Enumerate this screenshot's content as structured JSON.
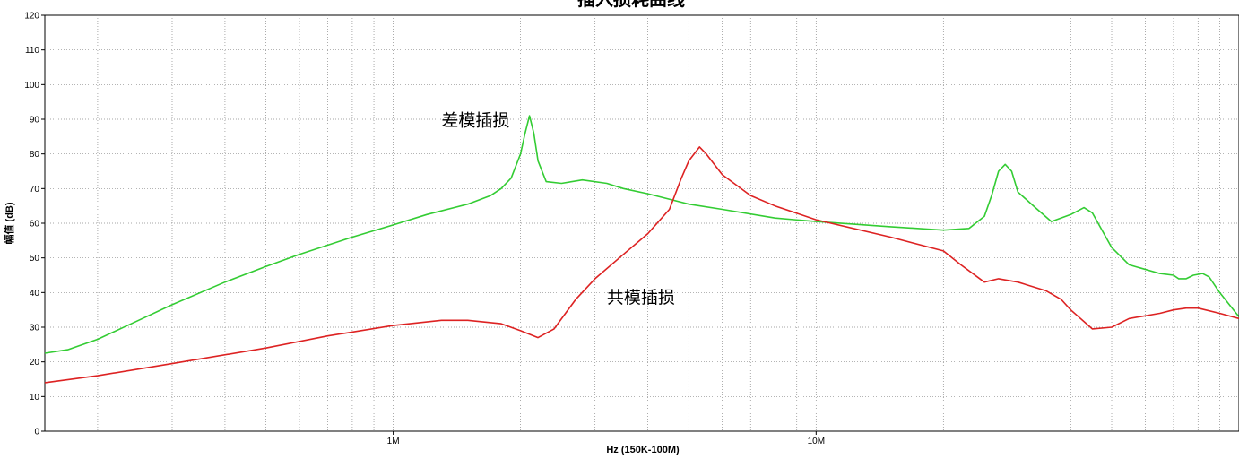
{
  "chart_data": {
    "type": "line",
    "title": "插入损耗曲线",
    "xlabel": "Hz  (150K-100M)",
    "ylabel": "幅值 (dB)",
    "x_scale": "log",
    "xlim": [
      150000,
      100000000
    ],
    "ylim": [
      0,
      120
    ],
    "y_ticks": [
      0,
      10,
      20,
      30,
      40,
      50,
      60,
      70,
      80,
      90,
      100,
      110,
      120
    ],
    "x_tick_labels": [
      {
        "value": 1000000,
        "label": "1M"
      },
      {
        "value": 10000000,
        "label": "10M"
      }
    ],
    "grid": true,
    "series": [
      {
        "name": "差模插损",
        "color": "#33cc33",
        "points": [
          [
            150000,
            22.5
          ],
          [
            170000,
            23.5
          ],
          [
            200000,
            26.5
          ],
          [
            250000,
            32
          ],
          [
            300000,
            36.5
          ],
          [
            400000,
            43
          ],
          [
            500000,
            47.5
          ],
          [
            600000,
            51
          ],
          [
            800000,
            56
          ],
          [
            1000000,
            59.5
          ],
          [
            1200000,
            62.5
          ],
          [
            1500000,
            65.5
          ],
          [
            1700000,
            68
          ],
          [
            1800000,
            70
          ],
          [
            1900000,
            73
          ],
          [
            2000000,
            80
          ],
          [
            2050000,
            86
          ],
          [
            2100000,
            91
          ],
          [
            2150000,
            86
          ],
          [
            2200000,
            78
          ],
          [
            2300000,
            72
          ],
          [
            2500000,
            71.5
          ],
          [
            2800000,
            72.5
          ],
          [
            3200000,
            71.5
          ],
          [
            3500000,
            70
          ],
          [
            4000000,
            68.5
          ],
          [
            5000000,
            65.5
          ],
          [
            6000000,
            64
          ],
          [
            8000000,
            61.5
          ],
          [
            10000000,
            60.5
          ],
          [
            15000000,
            59
          ],
          [
            20000000,
            58
          ],
          [
            23000000,
            58.5
          ],
          [
            25000000,
            62
          ],
          [
            26000000,
            68
          ],
          [
            27000000,
            75
          ],
          [
            28000000,
            77
          ],
          [
            29000000,
            75
          ],
          [
            30000000,
            69
          ],
          [
            33000000,
            64.5
          ],
          [
            36000000,
            60.5
          ],
          [
            40000000,
            62.5
          ],
          [
            43000000,
            64.5
          ],
          [
            45000000,
            63
          ],
          [
            50000000,
            53
          ],
          [
            55000000,
            48
          ],
          [
            65000000,
            45.5
          ],
          [
            70000000,
            45
          ],
          [
            72000000,
            44
          ],
          [
            75000000,
            44
          ],
          [
            78000000,
            45
          ],
          [
            82000000,
            45.5
          ],
          [
            85000000,
            44.5
          ],
          [
            90000000,
            40
          ],
          [
            100000000,
            33
          ]
        ]
      },
      {
        "name": "共模插损",
        "color": "#dd2222",
        "points": [
          [
            150000,
            14
          ],
          [
            200000,
            16
          ],
          [
            300000,
            19.5
          ],
          [
            500000,
            24
          ],
          [
            700000,
            27.5
          ],
          [
            1000000,
            30.5
          ],
          [
            1300000,
            32
          ],
          [
            1500000,
            32
          ],
          [
            1800000,
            31
          ],
          [
            2000000,
            29
          ],
          [
            2200000,
            27
          ],
          [
            2400000,
            29.5
          ],
          [
            2700000,
            38
          ],
          [
            3000000,
            44
          ],
          [
            3500000,
            51
          ],
          [
            4000000,
            57
          ],
          [
            4500000,
            64
          ],
          [
            4800000,
            73
          ],
          [
            5000000,
            78
          ],
          [
            5300000,
            82
          ],
          [
            5500000,
            80
          ],
          [
            6000000,
            74
          ],
          [
            7000000,
            68
          ],
          [
            8000000,
            65
          ],
          [
            10000000,
            61
          ],
          [
            15000000,
            56
          ],
          [
            20000000,
            52
          ],
          [
            22000000,
            48
          ],
          [
            25000000,
            43
          ],
          [
            27000000,
            44
          ],
          [
            30000000,
            43
          ],
          [
            35000000,
            40.5
          ],
          [
            38000000,
            38
          ],
          [
            40000000,
            35
          ],
          [
            45000000,
            29.5
          ],
          [
            50000000,
            30
          ],
          [
            55000000,
            32.5
          ],
          [
            65000000,
            34
          ],
          [
            70000000,
            35
          ],
          [
            75000000,
            35.5
          ],
          [
            80000000,
            35.5
          ],
          [
            90000000,
            34
          ],
          [
            100000000,
            32.5
          ]
        ]
      }
    ],
    "annotations": [
      {
        "text": "差模插损",
        "x": 1300000,
        "y": 88
      },
      {
        "text": "共模插损",
        "x": 3200000,
        "y": 37
      }
    ]
  }
}
